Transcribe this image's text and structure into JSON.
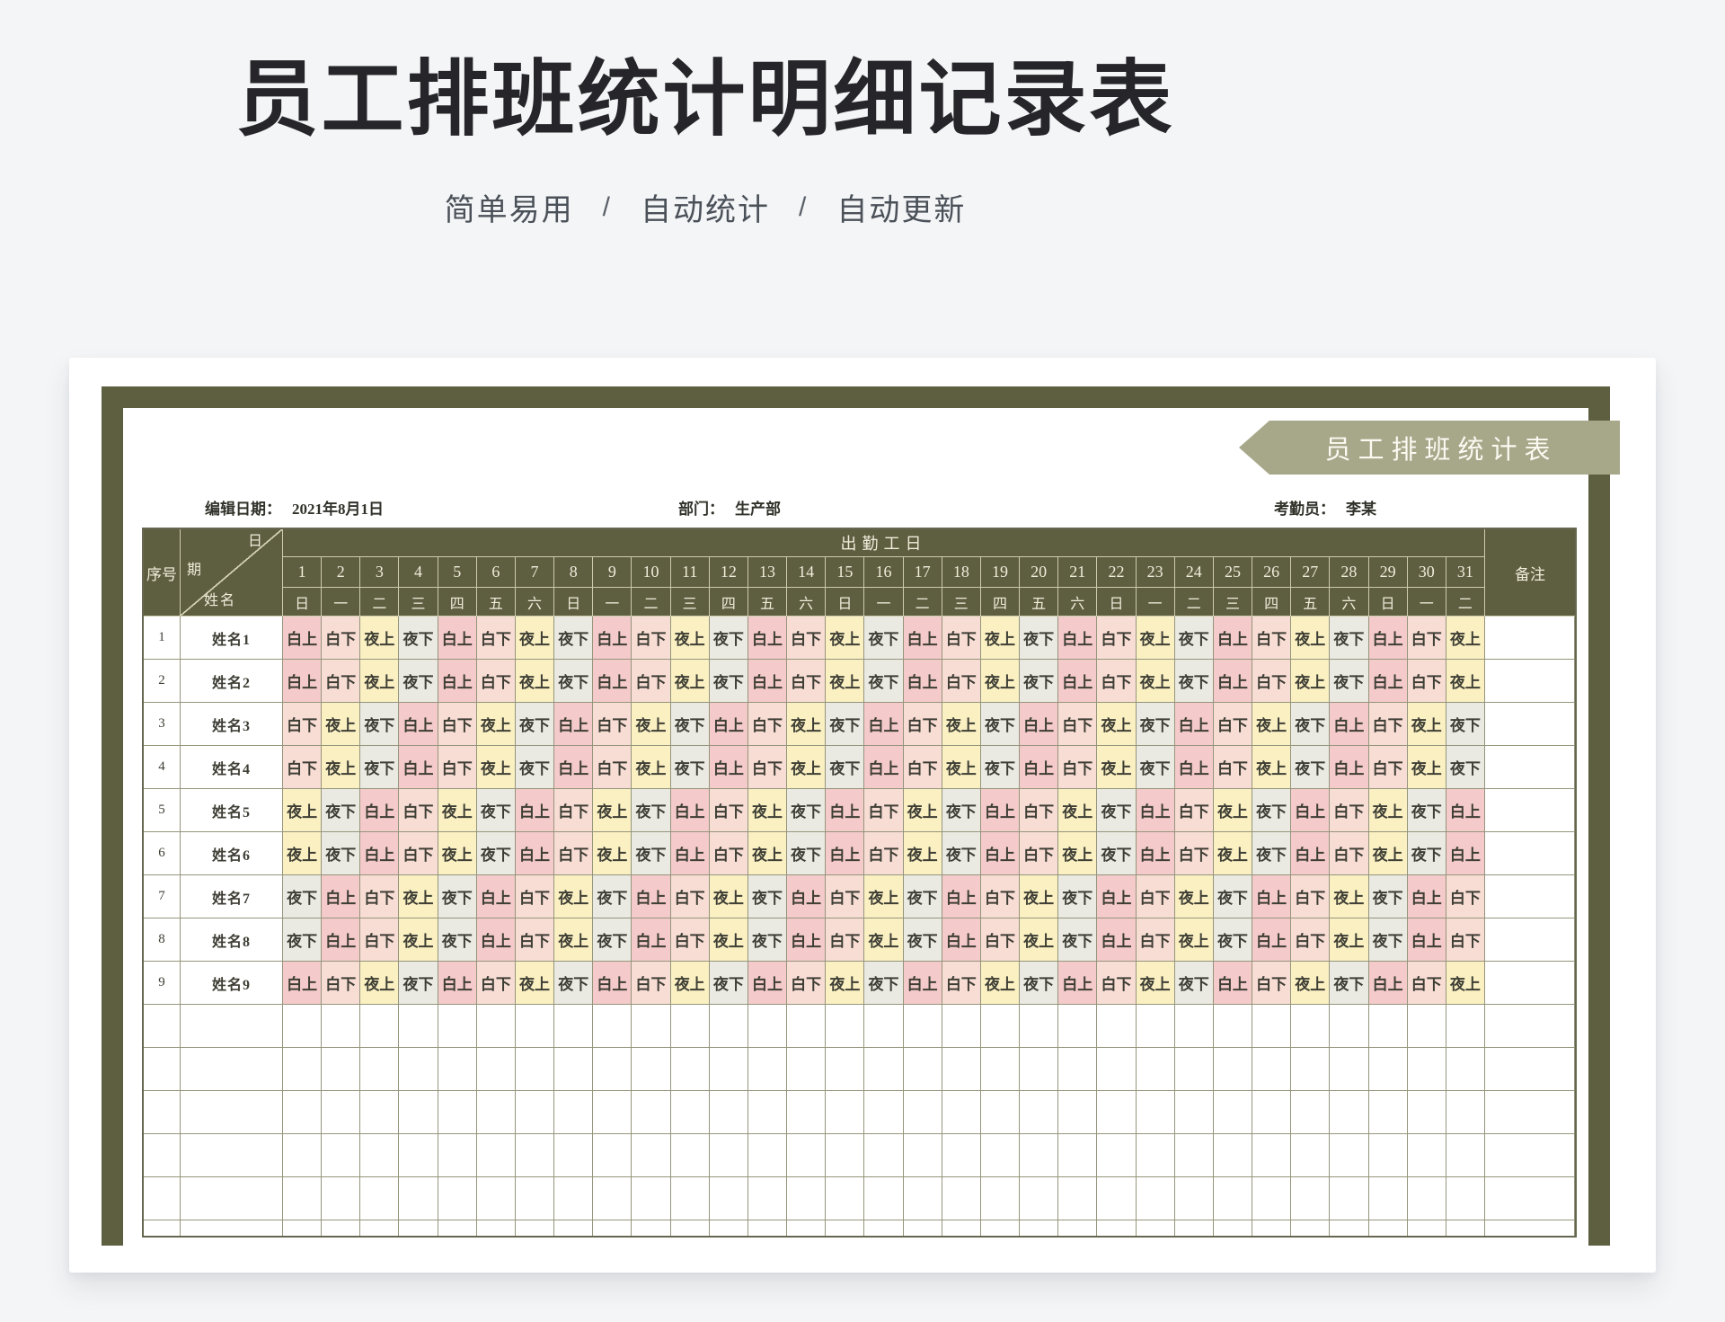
{
  "page": {
    "title": "员工排班统计明细记录表",
    "subtitle_items": [
      "简单易用",
      "自动统计",
      "自动更新"
    ],
    "subtitle_separator": "/"
  },
  "banner": {
    "text": "员工排班统计表"
  },
  "meta": {
    "items": [
      {
        "label": "编辑日期：",
        "value": "2021年8月1日"
      },
      {
        "label": "部门：",
        "value": "生产部"
      },
      {
        "label": "考勤员：",
        "value": "李某"
      }
    ]
  },
  "theme": {
    "frame_olive": "#5e5e41",
    "banner_sage": "#a7a78a",
    "header_text_cream": "#f0edda",
    "grid_line": "#95957c"
  },
  "table": {
    "col_serial": "序号",
    "corner": {
      "top": "日",
      "mid": "期",
      "bottom": "姓名"
    },
    "days_header": "出勤工日",
    "col_remark": "备注",
    "days": [
      1,
      2,
      3,
      4,
      5,
      6,
      7,
      8,
      9,
      10,
      11,
      12,
      13,
      14,
      15,
      16,
      17,
      18,
      19,
      20,
      21,
      22,
      23,
      24,
      25,
      26,
      27,
      28,
      29,
      30,
      31
    ],
    "weekdays": [
      "日",
      "一",
      "二",
      "三",
      "四",
      "五",
      "六",
      "日",
      "一",
      "二",
      "三",
      "四",
      "五",
      "六",
      "日",
      "一",
      "二",
      "三",
      "四",
      "五",
      "六",
      "日",
      "一",
      "二",
      "三",
      "四",
      "五",
      "六",
      "日",
      "一",
      "二"
    ],
    "shift_colors": {
      "白上": "#f4caca",
      "白下": "#f8ddd5",
      "夜上": "#faf0c2",
      "夜下": "#eaeae3"
    },
    "rows": [
      {
        "no": "1",
        "name": "姓名1",
        "shifts": [
          "白上",
          "白下",
          "夜上",
          "夜下",
          "白上",
          "白下",
          "夜上",
          "夜下",
          "白上",
          "白下",
          "夜上",
          "夜下",
          "白上",
          "白下",
          "夜上",
          "夜下",
          "白上",
          "白下",
          "夜上",
          "夜下",
          "白上",
          "白下",
          "夜上",
          "夜下",
          "白上",
          "白下",
          "夜上",
          "夜下",
          "白上",
          "白下",
          "夜上"
        ]
      },
      {
        "no": "2",
        "name": "姓名2",
        "shifts": [
          "白上",
          "白下",
          "夜上",
          "夜下",
          "白上",
          "白下",
          "夜上",
          "夜下",
          "白上",
          "白下",
          "夜上",
          "夜下",
          "白上",
          "白下",
          "夜上",
          "夜下",
          "白上",
          "白下",
          "夜上",
          "夜下",
          "白上",
          "白下",
          "夜上",
          "夜下",
          "白上",
          "白下",
          "夜上",
          "夜下",
          "白上",
          "白下",
          "夜上"
        ]
      },
      {
        "no": "3",
        "name": "姓名3",
        "shifts": [
          "白下",
          "夜上",
          "夜下",
          "白上",
          "白下",
          "夜上",
          "夜下",
          "白上",
          "白下",
          "夜上",
          "夜下",
          "白上",
          "白下",
          "夜上",
          "夜下",
          "白上",
          "白下",
          "夜上",
          "夜下",
          "白上",
          "白下",
          "夜上",
          "夜下",
          "白上",
          "白下",
          "夜上",
          "夜下",
          "白上",
          "白下",
          "夜上",
          "夜下"
        ]
      },
      {
        "no": "4",
        "name": "姓名4",
        "shifts": [
          "白下",
          "夜上",
          "夜下",
          "白上",
          "白下",
          "夜上",
          "夜下",
          "白上",
          "白下",
          "夜上",
          "夜下",
          "白上",
          "白下",
          "夜上",
          "夜下",
          "白上",
          "白下",
          "夜上",
          "夜下",
          "白上",
          "白下",
          "夜上",
          "夜下",
          "白上",
          "白下",
          "夜上",
          "夜下",
          "白上",
          "白下",
          "夜上",
          "夜下"
        ]
      },
      {
        "no": "5",
        "name": "姓名5",
        "shifts": [
          "夜上",
          "夜下",
          "白上",
          "白下",
          "夜上",
          "夜下",
          "白上",
          "白下",
          "夜上",
          "夜下",
          "白上",
          "白下",
          "夜上",
          "夜下",
          "白上",
          "白下",
          "夜上",
          "夜下",
          "白上",
          "白下",
          "夜上",
          "夜下",
          "白上",
          "白下",
          "夜上",
          "夜下",
          "白上",
          "白下",
          "夜上",
          "夜下",
          "白上"
        ]
      },
      {
        "no": "6",
        "name": "姓名6",
        "shifts": [
          "夜上",
          "夜下",
          "白上",
          "白下",
          "夜上",
          "夜下",
          "白上",
          "白下",
          "夜上",
          "夜下",
          "白上",
          "白下",
          "夜上",
          "夜下",
          "白上",
          "白下",
          "夜上",
          "夜下",
          "白上",
          "白下",
          "夜上",
          "夜下",
          "白上",
          "白下",
          "夜上",
          "夜下",
          "白上",
          "白下",
          "夜上",
          "夜下",
          "白上"
        ]
      },
      {
        "no": "7",
        "name": "姓名7",
        "shifts": [
          "夜下",
          "白上",
          "白下",
          "夜上",
          "夜下",
          "白上",
          "白下",
          "夜上",
          "夜下",
          "白上",
          "白下",
          "夜上",
          "夜下",
          "白上",
          "白下",
          "夜上",
          "夜下",
          "白上",
          "白下",
          "夜上",
          "夜下",
          "白上",
          "白下",
          "夜上",
          "夜下",
          "白上",
          "白下",
          "夜上",
          "夜下",
          "白上",
          "白下"
        ]
      },
      {
        "no": "8",
        "name": "姓名8",
        "shifts": [
          "夜下",
          "白上",
          "白下",
          "夜上",
          "夜下",
          "白上",
          "白下",
          "夜上",
          "夜下",
          "白上",
          "白下",
          "夜上",
          "夜下",
          "白上",
          "白下",
          "夜上",
          "夜下",
          "白上",
          "白下",
          "夜上",
          "夜下",
          "白上",
          "白下",
          "夜上",
          "夜下",
          "白上",
          "白下",
          "夜上",
          "夜下",
          "白上",
          "白下"
        ]
      },
      {
        "no": "9",
        "name": "姓名9",
        "shifts": [
          "白上",
          "白下",
          "夜上",
          "夜下",
          "白上",
          "白下",
          "夜上",
          "夜下",
          "白上",
          "白下",
          "夜上",
          "夜下",
          "白上",
          "白下",
          "夜上",
          "夜下",
          "白上",
          "白下",
          "夜上",
          "夜下",
          "白上",
          "白下",
          "夜上",
          "夜下",
          "白上",
          "白下",
          "夜上",
          "夜下",
          "白上",
          "白下",
          "夜上"
        ]
      }
    ],
    "empty_row_count": 6
  }
}
